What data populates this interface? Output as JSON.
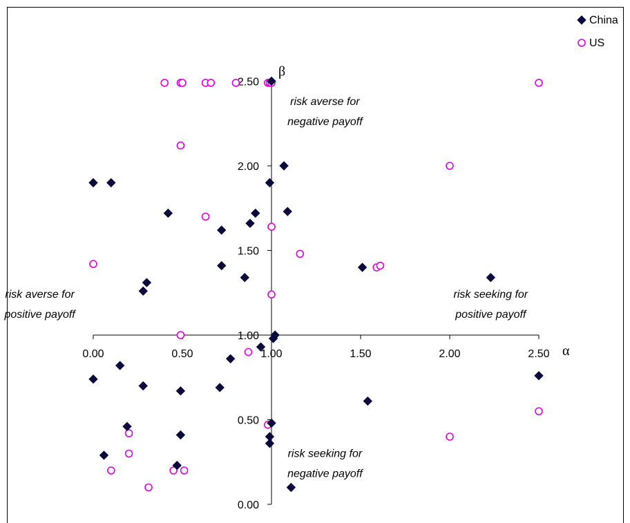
{
  "chart_data": {
    "type": "scatter",
    "title": "",
    "xlabel": "α",
    "ylabel": "β",
    "xlim": [
      0,
      2.5
    ],
    "ylim": [
      0,
      2.5
    ],
    "axis_crossing": {
      "x": 1.0,
      "y": 1.0
    },
    "x_ticks": [
      "0.00",
      "0.50",
      "1.00",
      "1.50",
      "2.00",
      "2.50"
    ],
    "y_ticks": [
      "0.00",
      "0.50",
      "1.00",
      "1.50",
      "2.00",
      "2.50"
    ],
    "grid": false,
    "legend_position": "top-right",
    "annotations": [
      {
        "id": "q1",
        "lines": [
          "risk averse for",
          "negative payoff"
        ],
        "x": 1.3,
        "y": 2.36
      },
      {
        "id": "q2",
        "lines": [
          "risk averse for",
          "positive payoff"
        ],
        "x": -0.3,
        "y": 1.22
      },
      {
        "id": "q3",
        "lines": [
          "risk seeking for",
          "positive payoff"
        ],
        "x": 2.23,
        "y": 1.22
      },
      {
        "id": "q4",
        "lines": [
          "risk seeking for",
          "negative payoff"
        ],
        "x": 1.3,
        "y": 0.28
      }
    ],
    "series": [
      {
        "name": "China",
        "marker": "diamond",
        "color": "#0a0a3c",
        "points": [
          [
            0.0,
            1.9
          ],
          [
            0.1,
            1.9
          ],
          [
            0.42,
            1.72
          ],
          [
            0.72,
            1.62
          ],
          [
            0.72,
            1.41
          ],
          [
            0.85,
            1.34
          ],
          [
            0.88,
            1.66
          ],
          [
            0.91,
            1.72
          ],
          [
            0.3,
            1.31
          ],
          [
            0.28,
            1.26
          ],
          [
            0.99,
            1.9
          ],
          [
            1.07,
            2.0
          ],
          [
            1.09,
            1.73
          ],
          [
            1.51,
            1.4
          ],
          [
            2.23,
            1.34
          ],
          [
            1.0,
            2.5
          ],
          [
            1.01,
            0.98
          ],
          [
            1.02,
            1.0
          ],
          [
            0.94,
            0.93
          ],
          [
            0.77,
            0.86
          ],
          [
            0.0,
            0.74
          ],
          [
            0.15,
            0.82
          ],
          [
            0.28,
            0.7
          ],
          [
            0.49,
            0.67
          ],
          [
            0.71,
            0.69
          ],
          [
            2.5,
            0.76
          ],
          [
            1.54,
            0.61
          ],
          [
            1.0,
            0.48
          ],
          [
            0.19,
            0.46
          ],
          [
            0.49,
            0.41
          ],
          [
            0.99,
            0.4
          ],
          [
            0.99,
            0.36
          ],
          [
            0.06,
            0.29
          ],
          [
            0.47,
            0.23
          ],
          [
            1.11,
            0.1
          ]
        ]
      },
      {
        "name": "US",
        "marker": "circle",
        "color": "#e000e0",
        "points": [
          [
            0.4,
            2.49
          ],
          [
            0.49,
            2.49
          ],
          [
            0.5,
            2.49
          ],
          [
            0.63,
            2.49
          ],
          [
            0.66,
            2.49
          ],
          [
            0.8,
            2.49
          ],
          [
            0.98,
            2.49
          ],
          [
            0.99,
            2.49
          ],
          [
            1.0,
            2.49
          ],
          [
            2.5,
            2.49
          ],
          [
            0.49,
            2.12
          ],
          [
            2.0,
            2.0
          ],
          [
            0.63,
            1.7
          ],
          [
            1.0,
            1.64
          ],
          [
            1.16,
            1.48
          ],
          [
            0.0,
            1.42
          ],
          [
            1.59,
            1.4
          ],
          [
            1.61,
            1.41
          ],
          [
            1.0,
            1.24
          ],
          [
            0.49,
            1.0
          ],
          [
            0.87,
            0.9
          ],
          [
            0.98,
            0.47
          ],
          [
            2.5,
            0.55
          ],
          [
            2.0,
            0.4
          ],
          [
            0.2,
            0.42
          ],
          [
            0.2,
            0.3
          ],
          [
            0.1,
            0.2
          ],
          [
            0.45,
            0.2
          ],
          [
            0.51,
            0.2
          ],
          [
            0.31,
            0.1
          ]
        ]
      }
    ]
  }
}
